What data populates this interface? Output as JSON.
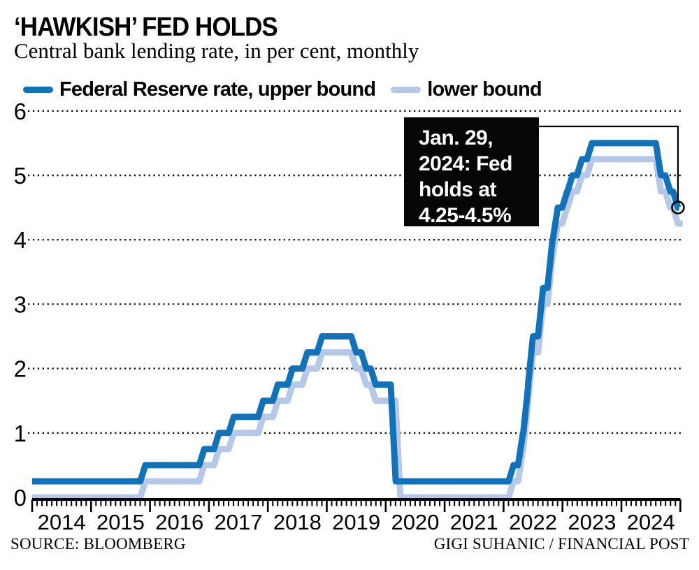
{
  "header": {
    "title": "‘HAWKISH’ FED HOLDS",
    "subtitle": "Central bank lending rate, in per cent, monthly"
  },
  "legend": [
    {
      "label": "Federal Reserve rate, upper bound",
      "color": "#1172b9"
    },
    {
      "label": "lower bound",
      "color": "#b5c8e8"
    }
  ],
  "annotation": {
    "lines": [
      "Jan. 29,",
      "2024: Fed",
      "holds at",
      "4.25-4.5%"
    ],
    "bg_color": "#060606",
    "text_color": "#ffffff",
    "target_value": 4.5
  },
  "footer": {
    "source": "SOURCE: BLOOMBERG",
    "credit": "GIGI SUHANIC / FINANCIAL POST"
  },
  "chart_data": {
    "type": "line",
    "title": "‘HAWKISH’ FED HOLDS",
    "subtitle": "Central bank lending rate, in per cent, monthly",
    "x_axis": {
      "range": [
        2014,
        2025
      ],
      "label_years": [
        "2014",
        "2015",
        "2016",
        "2017",
        "2018",
        "2019",
        "2020",
        "2021",
        "2022",
        "2023",
        "2024"
      ],
      "tick_interval": "monthly"
    },
    "y_axis": {
      "range": [
        0,
        6
      ],
      "ticks": [
        "0",
        "1",
        "2",
        "3",
        "4",
        "5",
        "6"
      ],
      "gridlines": "dotted",
      "unit": "per cent"
    },
    "legend_position": "top",
    "series": [
      {
        "name": "Federal Reserve rate, upper bound",
        "color": "#1172b9",
        "breakpoints": [
          [
            2014.0,
            0.25
          ],
          [
            2015.92,
            0.5
          ],
          [
            2016.92,
            0.75
          ],
          [
            2017.17,
            1.0
          ],
          [
            2017.42,
            1.25
          ],
          [
            2017.92,
            1.5
          ],
          [
            2018.17,
            1.75
          ],
          [
            2018.42,
            2.0
          ],
          [
            2018.67,
            2.25
          ],
          [
            2018.92,
            2.5
          ],
          [
            2019.5,
            2.25
          ],
          [
            2019.67,
            2.0
          ],
          [
            2019.83,
            1.75
          ],
          [
            2020.17,
            0.25
          ],
          [
            2022.17,
            0.5
          ],
          [
            2022.33,
            1.0
          ],
          [
            2022.42,
            1.75
          ],
          [
            2022.5,
            2.5
          ],
          [
            2022.67,
            3.25
          ],
          [
            2022.83,
            4.0
          ],
          [
            2022.92,
            4.5
          ],
          [
            2023.08,
            4.75
          ],
          [
            2023.17,
            5.0
          ],
          [
            2023.33,
            5.25
          ],
          [
            2023.5,
            5.5
          ],
          [
            2024.67,
            5.0
          ],
          [
            2024.83,
            4.75
          ],
          [
            2024.96,
            4.5
          ]
        ],
        "end_t": 2024.98,
        "end_marker": true
      },
      {
        "name": "lower bound",
        "color": "#b5c8e8",
        "breakpoints": [
          [
            2014.0,
            0.0
          ],
          [
            2015.92,
            0.25
          ],
          [
            2016.92,
            0.5
          ],
          [
            2017.17,
            0.75
          ],
          [
            2017.42,
            1.0
          ],
          [
            2017.92,
            1.25
          ],
          [
            2018.17,
            1.5
          ],
          [
            2018.42,
            1.75
          ],
          [
            2018.67,
            2.0
          ],
          [
            2018.92,
            2.25
          ],
          [
            2019.5,
            2.0
          ],
          [
            2019.67,
            1.75
          ],
          [
            2019.83,
            1.5
          ],
          [
            2020.25,
            0.0
          ],
          [
            2022.17,
            0.25
          ],
          [
            2022.33,
            0.75
          ],
          [
            2022.42,
            1.5
          ],
          [
            2022.5,
            2.25
          ],
          [
            2022.67,
            3.0
          ],
          [
            2022.83,
            3.75
          ],
          [
            2022.92,
            4.25
          ],
          [
            2023.08,
            4.5
          ],
          [
            2023.17,
            4.75
          ],
          [
            2023.33,
            5.0
          ],
          [
            2023.5,
            5.25
          ],
          [
            2024.67,
            4.75
          ],
          [
            2024.83,
            4.5
          ],
          [
            2024.96,
            4.25
          ]
        ],
        "end_t": 2025.04,
        "end_marker": false
      }
    ]
  }
}
